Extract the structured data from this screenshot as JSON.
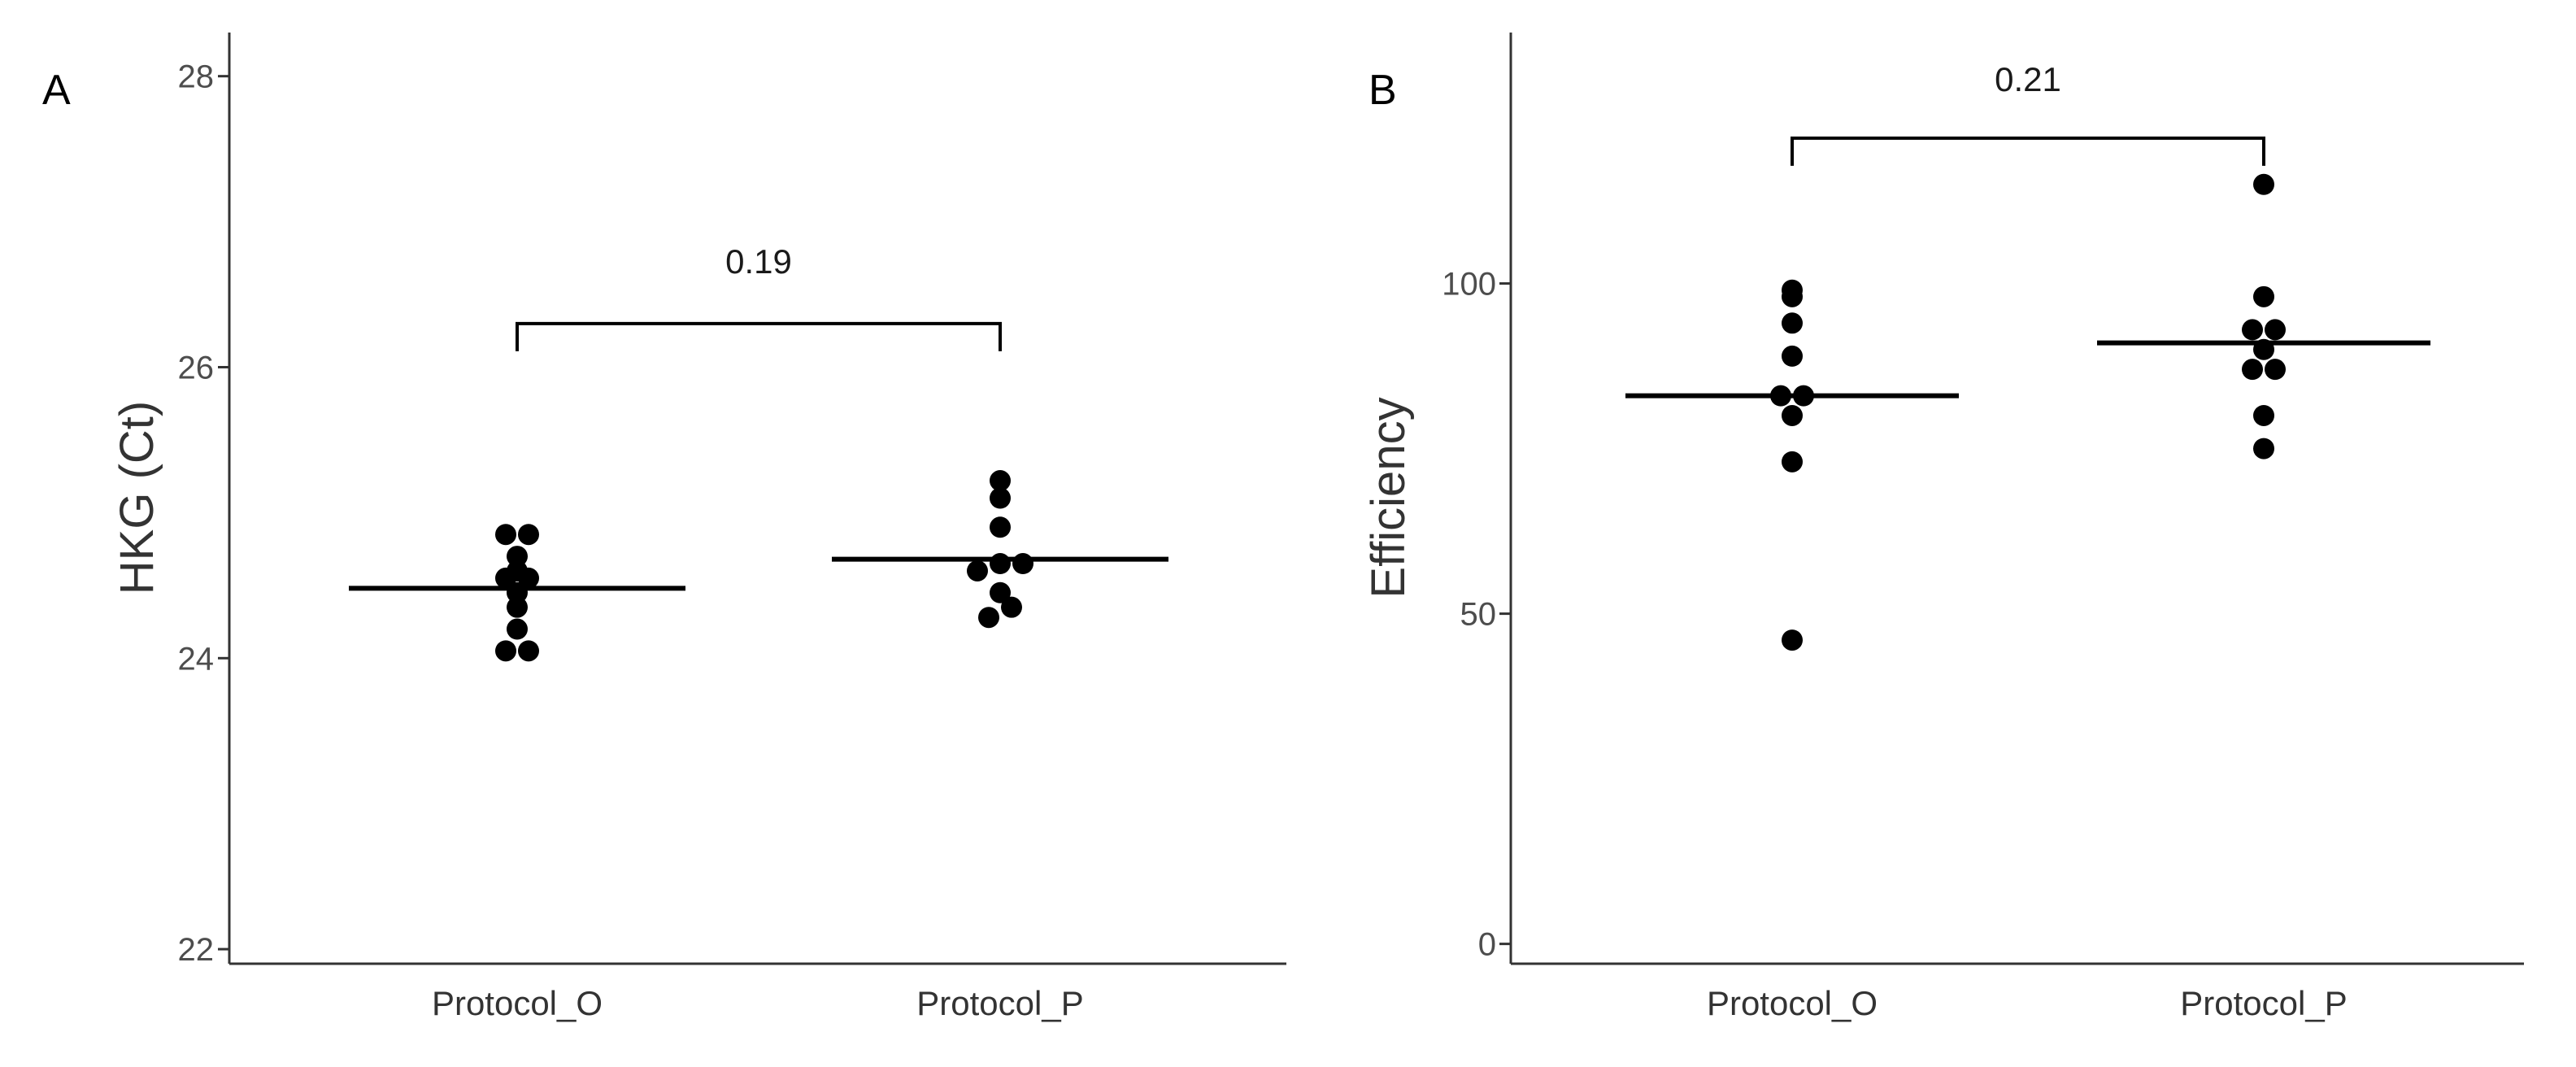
{
  "chart_data": [
    {
      "type": "scatter",
      "panel_label": "A",
      "title": "",
      "xlabel": "",
      "ylabel": "HKG (Ct)",
      "categories": [
        "Protocol_O",
        "Protocol_P"
      ],
      "ylim": [
        21.9,
        28.3
      ],
      "yticks": [
        22,
        24,
        26,
        28
      ],
      "grid": false,
      "series": [
        {
          "name": "Protocol_O",
          "values": [
            24.05,
            24.05,
            24.2,
            24.35,
            24.45,
            24.55,
            24.55,
            24.6,
            24.7,
            24.85,
            24.85
          ],
          "mean": 24.48
        },
        {
          "name": "Protocol_P",
          "values": [
            24.28,
            24.35,
            24.45,
            24.6,
            24.65,
            24.65,
            24.9,
            25.1,
            25.22
          ],
          "mean": 24.68
        }
      ],
      "comparison": {
        "groups": [
          "Protocol_O",
          "Protocol_P"
        ],
        "label": "0.19",
        "y": 26.3
      }
    },
    {
      "type": "scatter",
      "panel_label": "B",
      "title": "",
      "xlabel": "",
      "ylabel": "Efficiency",
      "categories": [
        "Protocol_O",
        "Protocol_P"
      ],
      "ylim": [
        -3,
        138
      ],
      "yticks": [
        0,
        50,
        100
      ],
      "grid": false,
      "series": [
        {
          "name": "Protocol_O",
          "values": [
            46,
            73,
            80,
            83,
            83,
            89,
            94,
            98,
            99
          ],
          "mean": 83
        },
        {
          "name": "Protocol_P",
          "values": [
            75,
            80,
            87,
            87,
            90,
            93,
            93,
            98,
            115
          ],
          "mean": 91
        }
      ],
      "comparison": {
        "groups": [
          "Protocol_O",
          "Protocol_P"
        ],
        "label": "0.21",
        "y": 122
      }
    }
  ]
}
